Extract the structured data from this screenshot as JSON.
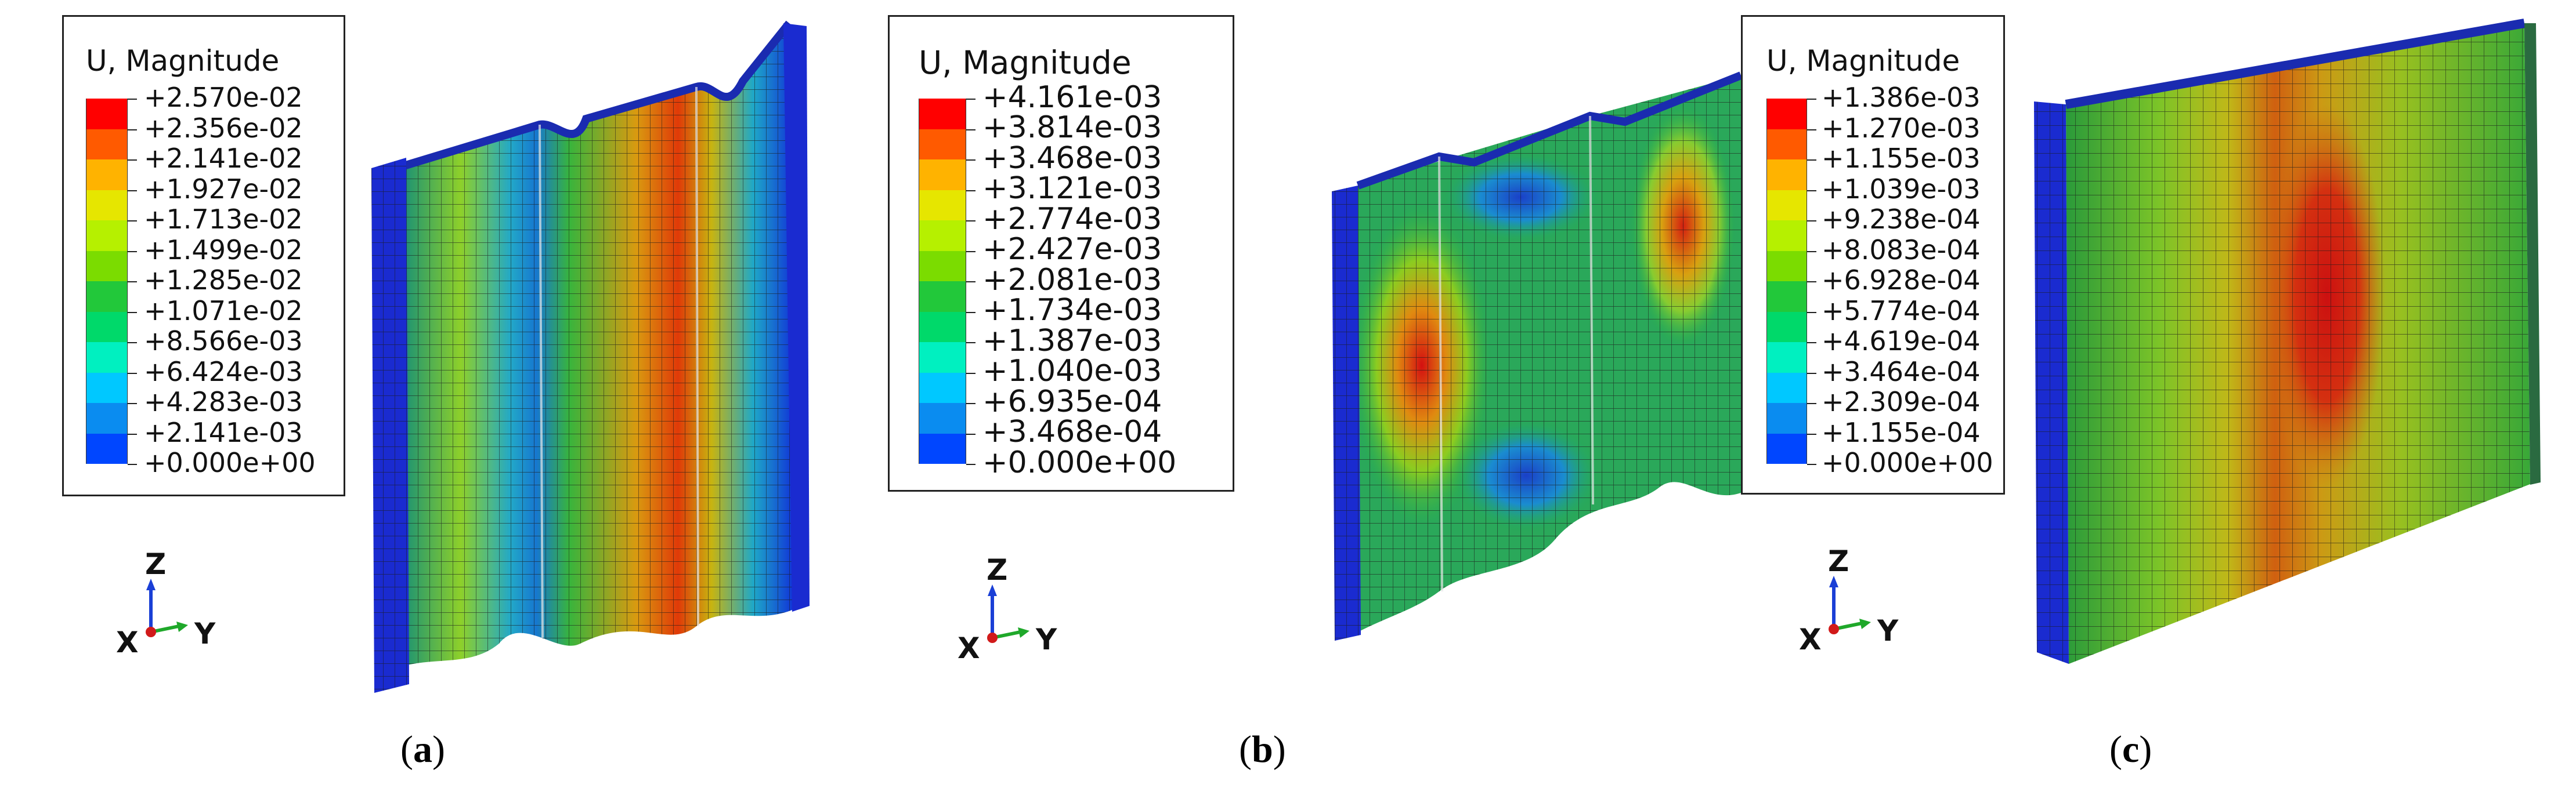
{
  "panels": [
    {
      "id": "a",
      "legend": {
        "title": "U, Magnitude",
        "labels": [
          "+2.570e-02",
          "+2.356e-02",
          "+2.141e-02",
          "+1.927e-02",
          "+1.713e-02",
          "+1.499e-02",
          "+1.285e-02",
          "+1.071e-02",
          "+8.566e-03",
          "+6.424e-03",
          "+4.283e-03",
          "+2.141e-03",
          "+0.000e+00"
        ]
      },
      "axes": {
        "z": "Z",
        "x": "X",
        "y": "Y"
      },
      "caption": {
        "open": "(",
        "letter": "a",
        "close": ")"
      }
    },
    {
      "id": "b",
      "legend": {
        "title": "U, Magnitude",
        "labels": [
          "+4.161e-03",
          "+3.814e-03",
          "+3.468e-03",
          "+3.121e-03",
          "+2.774e-03",
          "+2.427e-03",
          "+2.081e-03",
          "+1.734e-03",
          "+1.387e-03",
          "+1.040e-03",
          "+6.935e-04",
          "+3.468e-04",
          "+0.000e+00"
        ]
      },
      "axes": {
        "z": "Z",
        "x": "X",
        "y": "Y"
      },
      "caption": {
        "open": "(",
        "letter": "b",
        "close": ")"
      }
    },
    {
      "id": "c",
      "legend": {
        "title": "U, Magnitude",
        "labels": [
          "+1.386e-03",
          "+1.270e-03",
          "+1.155e-03",
          "+1.039e-03",
          "+9.238e-04",
          "+8.083e-04",
          "+6.928e-04",
          "+5.774e-04",
          "+4.619e-04",
          "+3.464e-04",
          "+2.309e-04",
          "+1.155e-04",
          "+0.000e+00"
        ]
      },
      "axes": {
        "z": "Z",
        "x": "X",
        "y": "Y"
      },
      "caption": {
        "open": "(",
        "letter": "c",
        "close": ")"
      }
    }
  ],
  "colormap": [
    "#ff0000",
    "#ff5a00",
    "#ffb300",
    "#e6e600",
    "#b6f000",
    "#7bdc00",
    "#22c83a",
    "#00d96a",
    "#00f0c0",
    "#00c8ff",
    "#0a8cf0",
    "#0046ff",
    "#0000ff"
  ],
  "axis_colors": {
    "z": "#1a3fd6",
    "x": "#d11a1a",
    "y": "#1fa82a"
  }
}
